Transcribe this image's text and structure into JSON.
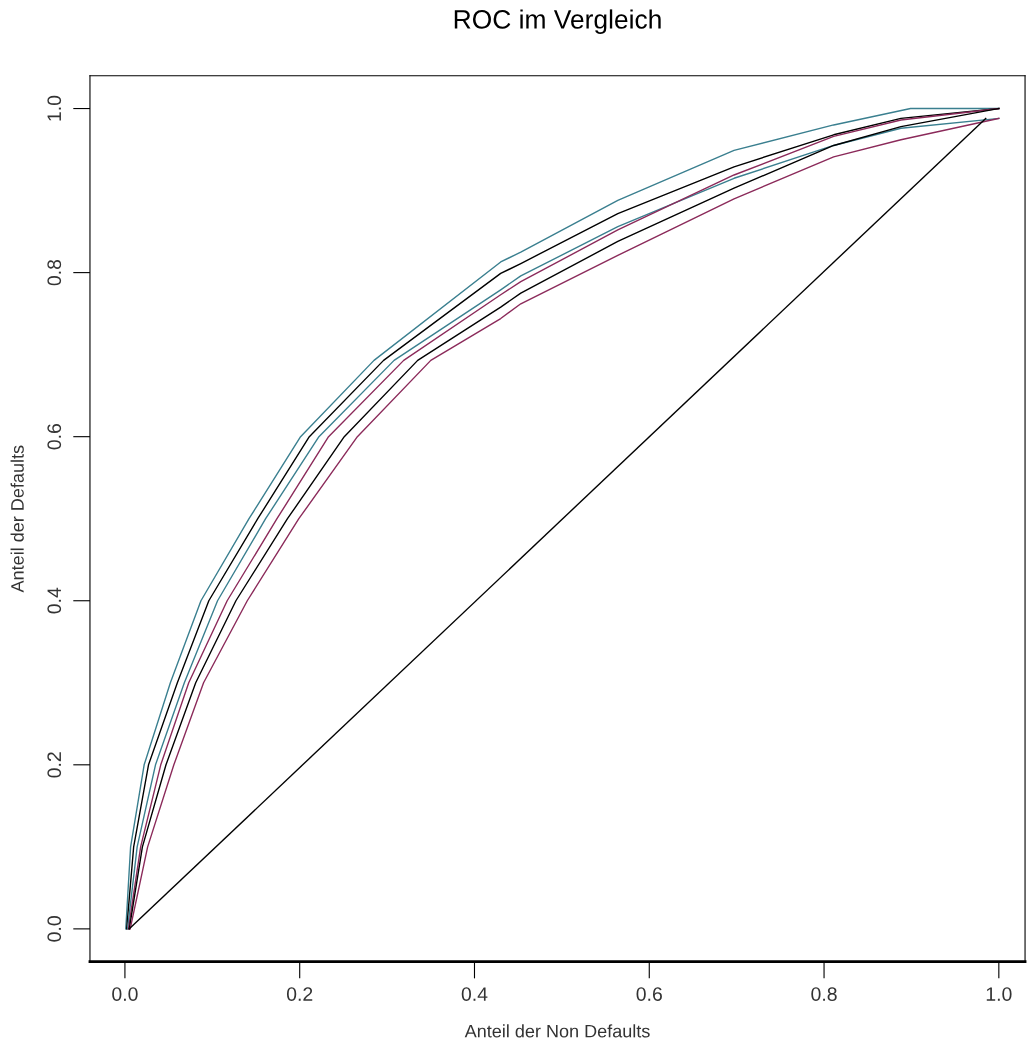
{
  "chart_data": {
    "type": "line",
    "title": "ROC im Vergleich",
    "xlabel": "Anteil der Non Defaults",
    "ylabel": "Anteil der Defaults",
    "xlim": [
      -0.04,
      1.03
    ],
    "ylim": [
      -0.04,
      1.04
    ],
    "xticks": [
      {
        "value": 0,
        "label": "0.0"
      },
      0.2,
      0.4,
      0.6,
      0.8,
      {
        "value": 1,
        "label": "1.0"
      }
    ],
    "yticks": [
      {
        "value": 0,
        "label": "0.0"
      },
      0.2,
      0.4,
      0.6,
      0.8,
      {
        "value": 1,
        "label": "1.0"
      }
    ],
    "grid": false,
    "marker": "none",
    "line_style": "solid",
    "series": [
      {
        "color": "#3a7f8f",
        "x": [
          0.001,
          0.0065,
          0.022,
          0.052,
          0.087,
          0.142,
          0.201,
          0.285,
          0.43,
          0.453,
          0.564,
          0.697,
          0.811,
          0.899,
          1.0
        ],
        "values": [
          0,
          0.1,
          0.2,
          0.3,
          0.4,
          0.5,
          0.6,
          0.693,
          0.813,
          0.825,
          0.888,
          0.949,
          0.98,
          1.0,
          1.0
        ]
      },
      {
        "color": "#000000",
        "x": [
          0.002,
          0.01,
          0.027,
          0.06,
          0.096,
          0.152,
          0.211,
          0.296,
          0.43,
          0.453,
          0.564,
          0.697,
          0.811,
          0.888,
          1.0
        ],
        "values": [
          0,
          0.1,
          0.2,
          0.3,
          0.4,
          0.5,
          0.6,
          0.693,
          0.799,
          0.811,
          0.872,
          0.929,
          0.968,
          0.988,
          1.0
        ]
      },
      {
        "color": "#3a7f8f",
        "x": [
          0.003,
          0.014,
          0.035,
          0.068,
          0.106,
          0.161,
          0.222,
          0.308,
          0.43,
          0.453,
          0.564,
          0.697,
          0.811,
          0.888,
          1.0
        ],
        "values": [
          0,
          0.1,
          0.2,
          0.3,
          0.4,
          0.5,
          0.6,
          0.693,
          0.779,
          0.796,
          0.856,
          0.915,
          0.955,
          0.976,
          0.988
        ]
      },
      {
        "color": "#8b2a5a",
        "x": [
          0.004,
          0.018,
          0.041,
          0.073,
          0.117,
          0.174,
          0.233,
          0.319,
          0.43,
          0.453,
          0.564,
          0.697,
          0.811,
          0.888,
          1.0
        ],
        "values": [
          0,
          0.1,
          0.2,
          0.3,
          0.4,
          0.5,
          0.6,
          0.693,
          0.773,
          0.789,
          0.852,
          0.919,
          0.966,
          0.986,
          1.0
        ]
      },
      {
        "color": "#000000",
        "x": [
          0.005,
          0.02,
          0.047,
          0.081,
          0.127,
          0.186,
          0.251,
          0.335,
          0.43,
          0.453,
          0.564,
          0.697,
          0.811,
          0.888,
          1.0
        ],
        "values": [
          0,
          0.1,
          0.2,
          0.3,
          0.4,
          0.5,
          0.6,
          0.693,
          0.758,
          0.775,
          0.838,
          0.903,
          0.955,
          0.978,
          1.0
        ]
      },
      {
        "color": "#8b2a5a",
        "x": [
          0.006,
          0.026,
          0.056,
          0.09,
          0.14,
          0.199,
          0.266,
          0.35,
          0.43,
          0.453,
          0.564,
          0.697,
          0.811,
          0.888,
          1.0
        ],
        "values": [
          0,
          0.1,
          0.2,
          0.3,
          0.4,
          0.5,
          0.6,
          0.693,
          0.744,
          0.762,
          0.821,
          0.89,
          0.941,
          0.962,
          0.988
        ]
      },
      {
        "color": "#000000",
        "x": [
          0.005,
          0.985
        ],
        "values": [
          0,
          0.988
        ]
      }
    ]
  }
}
